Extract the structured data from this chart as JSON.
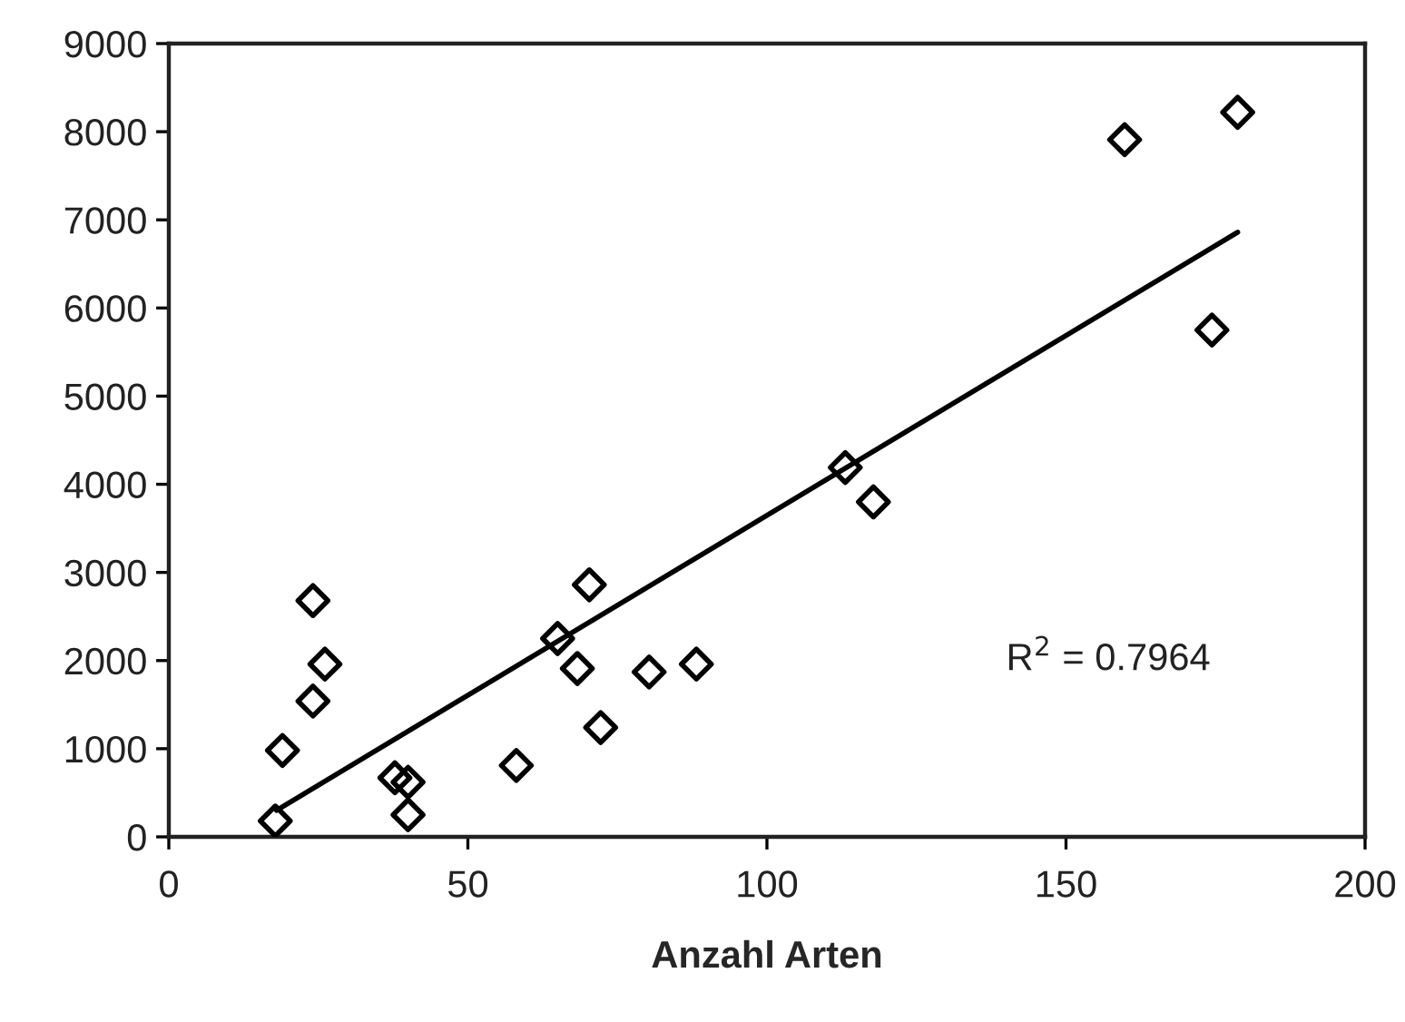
{
  "chart_data": {
    "type": "scatter",
    "xlabel": "Anzahl Arten",
    "xlim": [
      0,
      200
    ],
    "xticks": [
      0,
      50,
      100,
      150,
      200
    ],
    "ylim": [
      0,
      9000
    ],
    "yticks": [
      0,
      1000,
      2000,
      3000,
      4000,
      5000,
      6000,
      7000,
      8000,
      9000
    ],
    "grid": false,
    "marker": "diamond",
    "series": [
      {
        "color": "#000000",
        "x": [
          17.8,
          19.0,
          24.1,
          26.1,
          24.1,
          37.8,
          40.0,
          40.0,
          58.1,
          65.0,
          70.3,
          68.3,
          72.2,
          80.3,
          88.2,
          113.1,
          117.8,
          159.8,
          178.7,
          174.4
        ],
        "values": [
          180,
          980,
          2680,
          1960,
          1540,
          670,
          620,
          250,
          810,
          2250,
          2860,
          1910,
          1240,
          1870,
          1960,
          4190,
          3800,
          7910,
          8220,
          5750
        ]
      },
      {
        "type": "line",
        "color": "#000000",
        "marker": "none",
        "line_style": "solid",
        "x": [
          18,
          178.7
        ],
        "values": [
          300,
          6860
        ]
      }
    ],
    "annotations": [
      "R$^{2}$ = 0.7964"
    ]
  }
}
